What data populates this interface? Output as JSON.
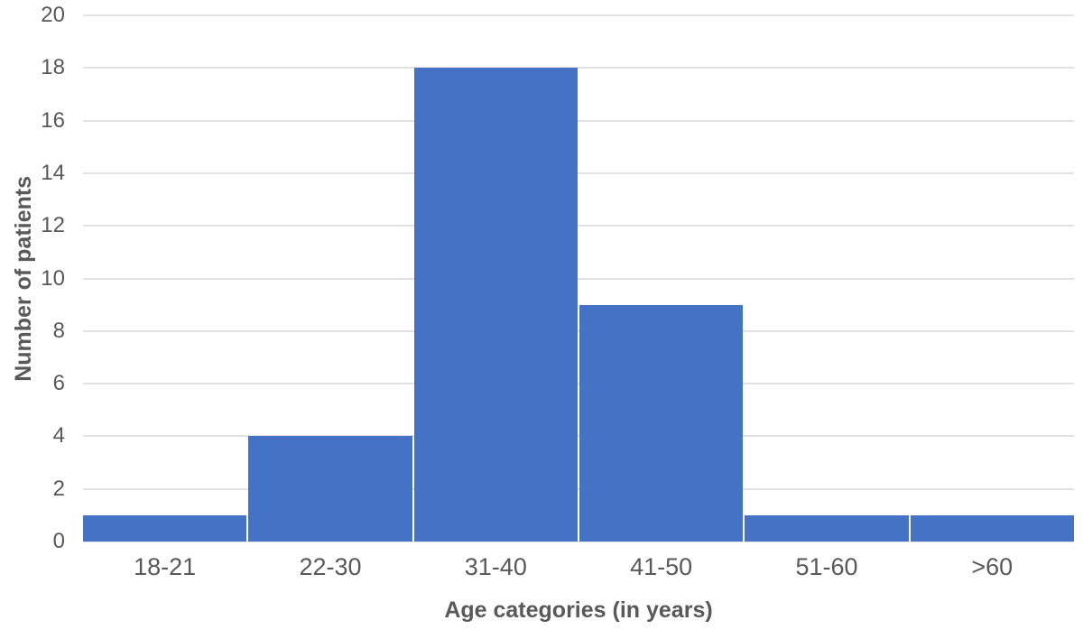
{
  "chart_data": {
    "type": "bar",
    "title": "",
    "categories": [
      "18-21",
      "22-30",
      "31-40",
      "41-50",
      "51-60",
      ">60"
    ],
    "values": [
      1,
      4,
      18,
      9,
      1,
      1
    ],
    "xlabel": "Age categories (in years)",
    "ylabel": "Number of patients",
    "ylim": [
      0,
      20
    ],
    "yticks": [
      0,
      2,
      4,
      6,
      8,
      10,
      12,
      14,
      16,
      18,
      20
    ],
    "grid": true,
    "legend": false,
    "colors": {
      "bar": "#4472C4",
      "gridline": "#E2E2E2",
      "text": "#595959",
      "background": "#FFFFFF"
    }
  }
}
